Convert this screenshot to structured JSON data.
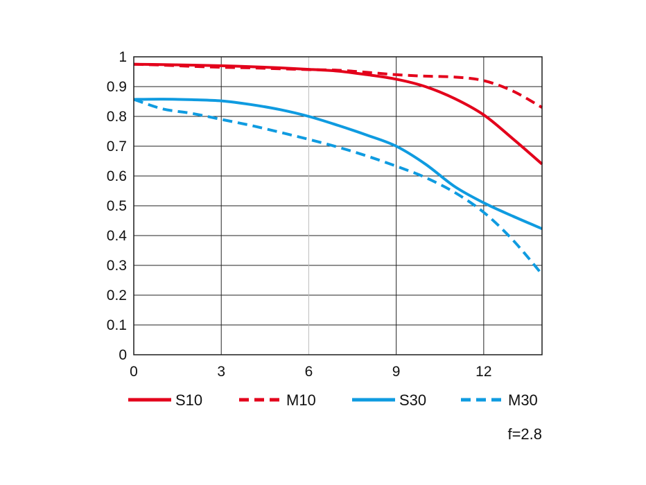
{
  "chart_data": {
    "type": "line",
    "xlim": [
      0,
      14
    ],
    "ylim": [
      0,
      1
    ],
    "x_ticks": [
      "0",
      "3",
      "6",
      "9",
      "12"
    ],
    "y_ticks": [
      "0",
      "0.1",
      "0.2",
      "0.3",
      "0.4",
      "0.5",
      "0.6",
      "0.7",
      "0.8",
      "0.9",
      "1"
    ],
    "grid": true,
    "legend_position": "bottom",
    "annotation": "f=2.8",
    "series": [
      {
        "name": "S10",
        "color": "#e3001b",
        "dash": "solid",
        "points": [
          [
            0,
            0.975
          ],
          [
            1,
            0.974
          ],
          [
            2,
            0.972
          ],
          [
            3,
            0.97
          ],
          [
            4,
            0.967
          ],
          [
            5,
            0.963
          ],
          [
            6,
            0.958
          ],
          [
            7,
            0.952
          ],
          [
            8,
            0.94
          ],
          [
            9,
            0.925
          ],
          [
            10,
            0.9
          ],
          [
            11,
            0.86
          ],
          [
            12,
            0.805
          ],
          [
            13,
            0.725
          ],
          [
            14,
            0.64
          ]
        ]
      },
      {
        "name": "M10",
        "color": "#e3001b",
        "dash": "dashed",
        "points": [
          [
            0,
            0.975
          ],
          [
            1,
            0.972
          ],
          [
            2,
            0.968
          ],
          [
            3,
            0.965
          ],
          [
            4,
            0.963
          ],
          [
            5,
            0.96
          ],
          [
            6,
            0.957
          ],
          [
            7,
            0.955
          ],
          [
            8,
            0.948
          ],
          [
            9,
            0.94
          ],
          [
            10,
            0.935
          ],
          [
            11,
            0.932
          ],
          [
            12,
            0.92
          ],
          [
            13,
            0.885
          ],
          [
            14,
            0.83
          ]
        ]
      },
      {
        "name": "S30",
        "color": "#0f9be0",
        "dash": "solid",
        "points": [
          [
            0,
            0.857
          ],
          [
            1,
            0.858
          ],
          [
            2,
            0.856
          ],
          [
            3,
            0.852
          ],
          [
            4,
            0.84
          ],
          [
            5,
            0.823
          ],
          [
            6,
            0.8
          ],
          [
            7,
            0.77
          ],
          [
            8,
            0.737
          ],
          [
            9,
            0.7
          ],
          [
            10,
            0.64
          ],
          [
            11,
            0.565
          ],
          [
            12,
            0.51
          ],
          [
            13,
            0.465
          ],
          [
            14,
            0.423
          ]
        ]
      },
      {
        "name": "M30",
        "color": "#0f9be0",
        "dash": "dashed",
        "points": [
          [
            0,
            0.857
          ],
          [
            1,
            0.825
          ],
          [
            2,
            0.81
          ],
          [
            3,
            0.79
          ],
          [
            4,
            0.77
          ],
          [
            5,
            0.747
          ],
          [
            6,
            0.723
          ],
          [
            7,
            0.697
          ],
          [
            8,
            0.667
          ],
          [
            9,
            0.633
          ],
          [
            10,
            0.595
          ],
          [
            11,
            0.545
          ],
          [
            12,
            0.478
          ],
          [
            13,
            0.385
          ],
          [
            14,
            0.27
          ]
        ]
      }
    ]
  }
}
